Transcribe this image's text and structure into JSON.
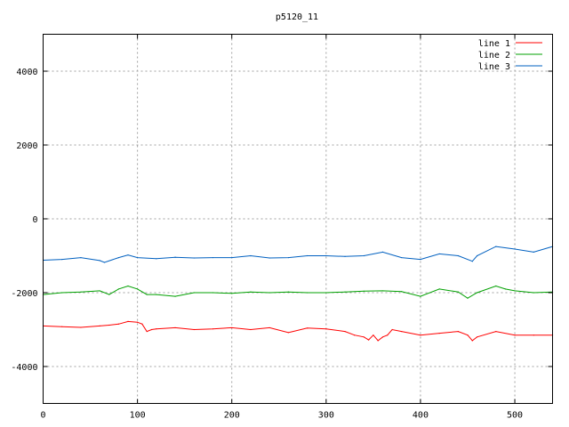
{
  "chart_data": {
    "type": "line",
    "title": "p5120_11",
    "xlabel": "",
    "ylabel": "",
    "xlim": [
      0,
      540
    ],
    "ylim": [
      -5000,
      5000
    ],
    "xticks": [
      0,
      100,
      200,
      300,
      400,
      500
    ],
    "yticks": [
      -4000,
      -2000,
      0,
      2000,
      4000
    ],
    "grid": true,
    "legend_position": "top-right",
    "series": [
      {
        "name": "line 1",
        "color": "#ff0000",
        "x": [
          0,
          20,
          40,
          60,
          70,
          80,
          90,
          100,
          105,
          110,
          115,
          120,
          140,
          160,
          180,
          200,
          220,
          240,
          260,
          280,
          300,
          320,
          330,
          340,
          345,
          350,
          355,
          360,
          365,
          370,
          380,
          400,
          420,
          440,
          450,
          455,
          460,
          480,
          500,
          520,
          540
        ],
        "y": [
          -2900,
          -2920,
          -2940,
          -2900,
          -2880,
          -2850,
          -2780,
          -2800,
          -2850,
          -3050,
          -3000,
          -2980,
          -2950,
          -3000,
          -2980,
          -2950,
          -3000,
          -2950,
          -3080,
          -2960,
          -2980,
          -3050,
          -3150,
          -3200,
          -3280,
          -3150,
          -3300,
          -3200,
          -3150,
          -3000,
          -3050,
          -3150,
          -3100,
          -3050,
          -3150,
          -3300,
          -3200,
          -3050,
          -3150,
          -3150,
          -3150
        ]
      },
      {
        "name": "line 2",
        "color": "#00a000",
        "x": [
          0,
          20,
          40,
          60,
          70,
          80,
          90,
          100,
          110,
          120,
          140,
          160,
          180,
          200,
          220,
          240,
          260,
          280,
          300,
          320,
          340,
          360,
          380,
          400,
          420,
          440,
          450,
          460,
          480,
          490,
          500,
          520,
          540
        ],
        "y": [
          -2050,
          -2000,
          -1980,
          -1950,
          -2050,
          -1900,
          -1820,
          -1900,
          -2050,
          -2050,
          -2100,
          -2000,
          -2000,
          -2020,
          -1980,
          -2000,
          -1980,
          -2000,
          -2000,
          -1980,
          -1960,
          -1950,
          -1970,
          -2100,
          -1900,
          -1980,
          -2150,
          -2000,
          -1820,
          -1900,
          -1950,
          -2000,
          -1980
        ]
      },
      {
        "name": "line 3",
        "color": "#0060c0",
        "x": [
          0,
          20,
          40,
          60,
          65,
          80,
          90,
          100,
          120,
          140,
          160,
          180,
          200,
          220,
          240,
          260,
          280,
          300,
          320,
          340,
          360,
          380,
          400,
          420,
          440,
          455,
          460,
          480,
          500,
          520,
          540
        ],
        "y": [
          -1120,
          -1100,
          -1050,
          -1130,
          -1180,
          -1050,
          -980,
          -1050,
          -1080,
          -1040,
          -1060,
          -1050,
          -1050,
          -1000,
          -1060,
          -1050,
          -1000,
          -1000,
          -1020,
          -1000,
          -900,
          -1050,
          -1100,
          -950,
          -1000,
          -1150,
          -1000,
          -750,
          -820,
          -900,
          -750
        ]
      }
    ]
  }
}
